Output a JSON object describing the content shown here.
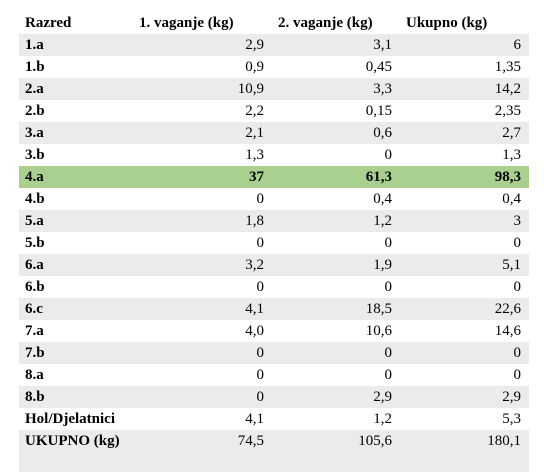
{
  "table": {
    "headers": [
      "Razred",
      "1. vaganje (kg)",
      "2. vaganje (kg)",
      "Ukupno (kg)"
    ],
    "rows": [
      {
        "razred": "1.a",
        "v1": "2,9",
        "v2": "3,1",
        "total": "6"
      },
      {
        "razred": "1.b",
        "v1": "0,9",
        "v2": "0,45",
        "total": "1,35"
      },
      {
        "razred": "2.a",
        "v1": "10,9",
        "v2": "3,3",
        "total": "14,2"
      },
      {
        "razred": "2.b",
        "v1": "2,2",
        "v2": "0,15",
        "total": "2,35"
      },
      {
        "razred": "3.a",
        "v1": "2,1",
        "v2": "0,6",
        "total": "2,7"
      },
      {
        "razred": "3.b",
        "v1": "1,3",
        "v2": "0",
        "total": "1,3"
      },
      {
        "razred": "4.a",
        "v1": "37",
        "v2": "61,3",
        "total": "98,3",
        "highlight": true
      },
      {
        "razred": "4.b",
        "v1": "0",
        "v2": "0,4",
        "total": "0,4"
      },
      {
        "razred": "5.a",
        "v1": "1,8",
        "v2": "1,2",
        "total": "3"
      },
      {
        "razred": "5.b",
        "v1": "0",
        "v2": "0",
        "total": "0"
      },
      {
        "razred": "6.a",
        "v1": "3,2",
        "v2": "1,9",
        "total": "5,1"
      },
      {
        "razred": "6.b",
        "v1": "0",
        "v2": "0",
        "total": "0"
      },
      {
        "razred": "6.c",
        "v1": "4,1",
        "v2": "18,5",
        "total": "22,6"
      },
      {
        "razred": "7.a",
        "v1": "4,0",
        "v2": "10,6",
        "total": "14,6"
      },
      {
        "razred": "7.b",
        "v1": "0",
        "v2": "0",
        "total": "0"
      },
      {
        "razred": "8.a",
        "v1": "0",
        "v2": "0",
        "total": "0"
      },
      {
        "razred": "8.b",
        "v1": "0",
        "v2": "2,9",
        "total": "2,9"
      },
      {
        "razred": "Hol/Djelatnici",
        "v1": "4,1",
        "v2": "1,2",
        "total": "5,3"
      }
    ],
    "total_row": {
      "razred": "UKUPNO (kg)",
      "v1": "74,5",
      "v2": "105,6",
      "total": "180,1"
    }
  },
  "colors": {
    "stripe": "#ebebeb",
    "highlight": "#a9d08e"
  }
}
